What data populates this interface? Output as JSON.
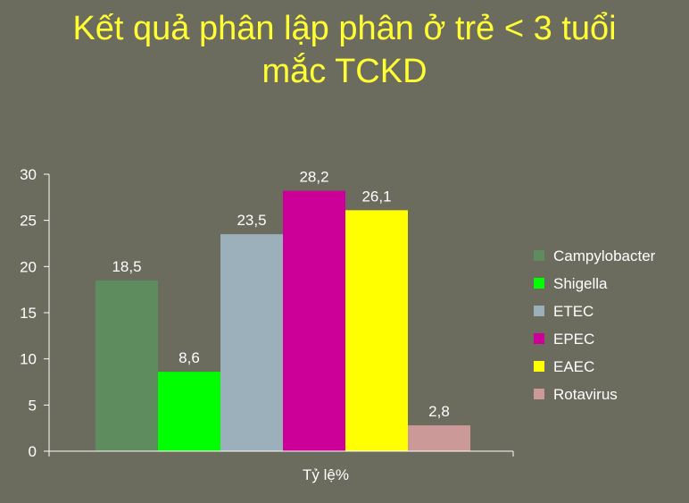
{
  "slide": {
    "title_line1": "Kết quả phân lập phân ở trẻ < 3 tuổi",
    "title_line2": "mắc TCKD",
    "text_color": "#ffff33",
    "background": "#6b6b5e"
  },
  "chart_data": {
    "type": "bar",
    "title": "",
    "xlabel": "Tỷ lệ%",
    "ylabel": "",
    "categories": [
      "Tỷ lệ%"
    ],
    "ylim": [
      0,
      30
    ],
    "yticks": [
      0,
      5,
      10,
      15,
      20,
      25,
      30
    ],
    "grid": false,
    "legend_position": "right",
    "series": [
      {
        "name": "Campylobacter",
        "values": [
          18.5
        ],
        "label": "18,5",
        "color": "#5e8c5e"
      },
      {
        "name": "Shigella",
        "values": [
          8.6
        ],
        "label": "8,6",
        "color": "#00ff00"
      },
      {
        "name": "ETEC",
        "values": [
          23.5
        ],
        "label": "23,5",
        "color": "#9cb0bc"
      },
      {
        "name": "EPEC",
        "values": [
          28.2
        ],
        "label": "28,2",
        "color": "#cc0099"
      },
      {
        "name": "EAEC",
        "values": [
          26.1
        ],
        "label": "26,1",
        "color": "#ffff00"
      },
      {
        "name": "Rotavirus",
        "values": [
          2.8
        ],
        "label": "2,8",
        "color": "#cc9999"
      }
    ]
  }
}
